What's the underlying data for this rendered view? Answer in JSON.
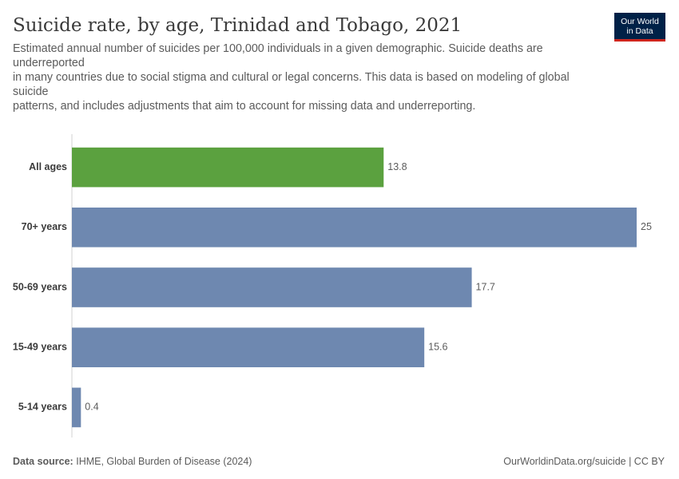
{
  "header": {
    "title": "Suicide rate, by age, Trinidad and Tobago, 2021",
    "subtitle_lines": [
      "Estimated annual number of suicides per 100,000 individuals in a given demographic. Suicide deaths are underreported",
      "in many countries due to social stigma and cultural or legal concerns. This data is based on modeling of global suicide",
      "patterns, and includes adjustments that aim to account for missing data and underreporting."
    ]
  },
  "logo": {
    "line1": "Our World",
    "line2": "in Data"
  },
  "footer": {
    "source_label": "Data source:",
    "source_text": "IHME, Global Burden of Disease (2024)",
    "credit": "OurWorldinData.org/suicide | CC BY"
  },
  "colors": {
    "highlight": "#5ba13f",
    "default": "#6e88b0",
    "axis": "#d0d0d0"
  },
  "chart_data": {
    "type": "bar",
    "orientation": "horizontal",
    "title": "Suicide rate, by age, Trinidad and Tobago, 2021",
    "categories": [
      "All ages",
      "70+ years",
      "50-69 years",
      "15-49 years",
      "5-14 years"
    ],
    "values": [
      13.8,
      25,
      17.7,
      15.6,
      0.4
    ],
    "value_labels": [
      "13.8",
      "25",
      "17.7",
      "15.6",
      "0.4"
    ],
    "highlighted": [
      true,
      false,
      false,
      false,
      false
    ],
    "xlim": [
      0,
      25
    ],
    "grid": false,
    "legend": "none"
  }
}
